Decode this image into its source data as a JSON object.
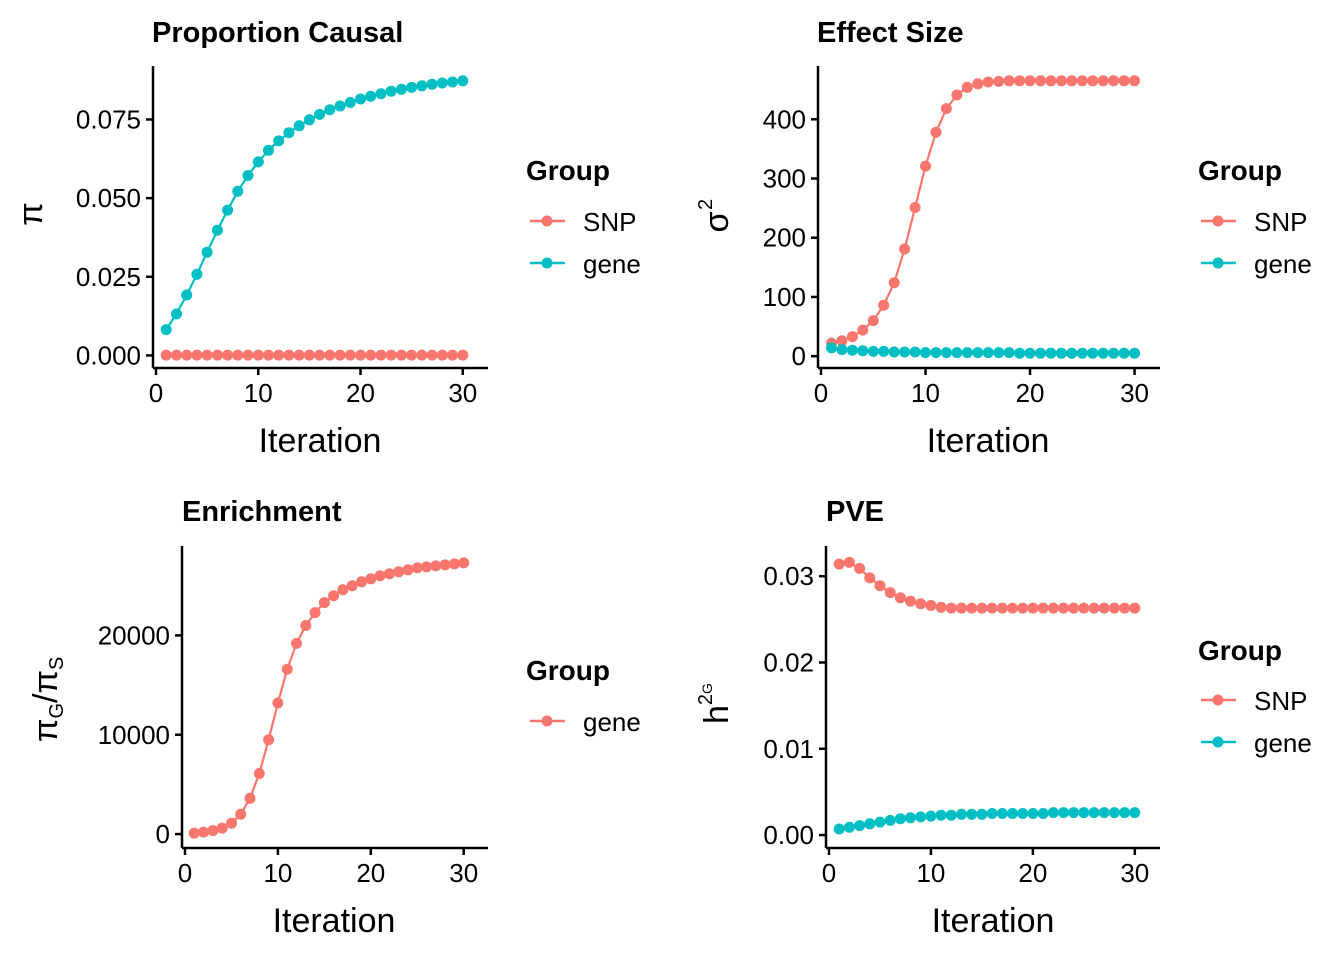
{
  "colors": {
    "SNP": "#F8766D",
    "gene": "#00BFC4"
  },
  "chart_data": [
    {
      "id": "proportion",
      "type": "line",
      "title": "Proportion Causal",
      "xlabel": "Iteration",
      "ylabel": "π",
      "xlim": [
        0,
        31
      ],
      "ylim": [
        -0.004,
        0.092
      ],
      "xticks": [
        0,
        10,
        20,
        30
      ],
      "xtick_labels": [
        "0",
        "10",
        "20",
        "30"
      ],
      "yticks": [
        0,
        0.025,
        0.05,
        0.075
      ],
      "ytick_labels": [
        "0.000",
        "0.025",
        "0.050",
        "0.075"
      ],
      "legend": {
        "title": "Group",
        "items": [
          "SNP",
          "gene"
        ]
      },
      "series": [
        {
          "name": "SNP",
          "x": [
            1,
            2,
            3,
            4,
            5,
            6,
            7,
            8,
            9,
            10,
            11,
            12,
            13,
            14,
            15,
            16,
            17,
            18,
            19,
            20,
            21,
            22,
            23,
            24,
            25,
            26,
            27,
            28,
            29,
            30
          ],
          "y": [
            0.0001,
            0.0001,
            0.0001,
            0.0001,
            0.0001,
            0.0001,
            0.0001,
            0.0001,
            0.0001,
            0.0001,
            0.0001,
            0.0001,
            0.0001,
            0.0001,
            0.0001,
            0.0001,
            0.0001,
            0.0001,
            0.0001,
            0.0001,
            0.0001,
            0.0001,
            0.0001,
            0.0001,
            0.0001,
            0.0001,
            0.0001,
            0.0001,
            0.0001,
            0.0001
          ]
        },
        {
          "name": "gene",
          "x": [
            1,
            2,
            3,
            4,
            5,
            6,
            7,
            8,
            9,
            10,
            11,
            12,
            13,
            14,
            15,
            16,
            17,
            18,
            19,
            20,
            21,
            22,
            23,
            24,
            25,
            26,
            27,
            28,
            29,
            30
          ],
          "y": [
            0.0082,
            0.0132,
            0.0192,
            0.0258,
            0.0328,
            0.0398,
            0.0462,
            0.0522,
            0.0572,
            0.0615,
            0.0652,
            0.0682,
            0.0708,
            0.073,
            0.0749,
            0.0766,
            0.0781,
            0.0793,
            0.0804,
            0.0815,
            0.0824,
            0.0832,
            0.084,
            0.0846,
            0.0852,
            0.0857,
            0.0862,
            0.0866,
            0.0869,
            0.0873
          ]
        }
      ]
    },
    {
      "id": "effect",
      "type": "line",
      "title": "Effect Size",
      "xlabel": "Iteration",
      "ylabel": "σ",
      "ylabel_sup": "2",
      "xlim": [
        0,
        31
      ],
      "ylim": [
        -20,
        490
      ],
      "xticks": [
        0,
        10,
        20,
        30
      ],
      "xtick_labels": [
        "0",
        "10",
        "20",
        "30"
      ],
      "yticks": [
        0,
        100,
        200,
        300,
        400
      ],
      "ytick_labels": [
        "0",
        "100",
        "200",
        "300",
        "400"
      ],
      "legend": {
        "title": "Group",
        "items": [
          "SNP",
          "gene"
        ]
      },
      "series": [
        {
          "name": "SNP",
          "x": [
            1,
            2,
            3,
            4,
            5,
            6,
            7,
            8,
            9,
            10,
            11,
            12,
            13,
            14,
            15,
            16,
            17,
            18,
            19,
            20,
            21,
            22,
            23,
            24,
            25,
            26,
            27,
            28,
            29,
            30
          ],
          "y": [
            22,
            26,
            33,
            44,
            60,
            86,
            124,
            181,
            251,
            321,
            378,
            418,
            441,
            454,
            460,
            463,
            464,
            465,
            465,
            465,
            465,
            465,
            465,
            465,
            465,
            465,
            465,
            465,
            465,
            465
          ]
        },
        {
          "name": "gene",
          "x": [
            1,
            2,
            3,
            4,
            5,
            6,
            7,
            8,
            9,
            10,
            11,
            12,
            13,
            14,
            15,
            16,
            17,
            18,
            19,
            20,
            21,
            22,
            23,
            24,
            25,
            26,
            27,
            28,
            29,
            30
          ],
          "y": [
            14,
            11,
            10,
            9,
            8,
            8,
            7,
            7,
            7,
            6,
            6,
            6,
            6,
            6,
            6,
            6,
            6,
            6,
            5,
            5,
            5,
            5,
            5,
            5,
            5,
            5,
            5,
            5,
            5,
            5
          ]
        }
      ]
    },
    {
      "id": "enrichment",
      "type": "line",
      "title": "Enrichment",
      "xlabel": "Iteration",
      "ylabel": "π",
      "ylabel_parts": [
        "π",
        "G",
        "/",
        "π",
        "S"
      ],
      "xlim": [
        0,
        31
      ],
      "ylim": [
        -1400,
        29000
      ],
      "xticks": [
        0,
        10,
        20,
        30
      ],
      "xtick_labels": [
        "0",
        "10",
        "20",
        "30"
      ],
      "yticks": [
        0,
        10000,
        20000
      ],
      "ytick_labels": [
        "0",
        "10000",
        "20000"
      ],
      "legend": {
        "title": "Group",
        "items": [
          "gene"
        ]
      },
      "series": [
        {
          "name": "gene",
          "x": [
            1,
            2,
            3,
            4,
            5,
            6,
            7,
            8,
            9,
            10,
            11,
            12,
            13,
            14,
            15,
            16,
            17,
            18,
            19,
            20,
            21,
            22,
            23,
            24,
            25,
            26,
            27,
            28,
            29,
            30
          ],
          "y": [
            100,
            200,
            350,
            600,
            1100,
            2000,
            3600,
            6100,
            9500,
            13200,
            16600,
            19200,
            21000,
            22300,
            23300,
            24000,
            24600,
            25000,
            25400,
            25700,
            26000,
            26200,
            26400,
            26600,
            26800,
            26900,
            27000,
            27100,
            27200,
            27300
          ]
        }
      ]
    },
    {
      "id": "pve",
      "type": "line",
      "title": "PVE",
      "xlabel": "Iteration",
      "ylabel": "h",
      "ylabel_parts": [
        "h",
        "2",
        "G"
      ],
      "xlim": [
        0,
        31
      ],
      "ylim": [
        -0.0015,
        0.0335
      ],
      "xticks": [
        0,
        10,
        20,
        30
      ],
      "xtick_labels": [
        "0",
        "10",
        "20",
        "30"
      ],
      "yticks": [
        0,
        0.01,
        0.02,
        0.03
      ],
      "ytick_labels": [
        "0.00",
        "0.01",
        "0.02",
        "0.03"
      ],
      "legend": {
        "title": "Group",
        "items": [
          "SNP",
          "gene"
        ]
      },
      "series": [
        {
          "name": "SNP",
          "x": [
            1,
            2,
            3,
            4,
            5,
            6,
            7,
            8,
            9,
            10,
            11,
            12,
            13,
            14,
            15,
            16,
            17,
            18,
            19,
            20,
            21,
            22,
            23,
            24,
            25,
            26,
            27,
            28,
            29,
            30
          ],
          "y": [
            0.0314,
            0.0316,
            0.0309,
            0.0298,
            0.0289,
            0.0281,
            0.0275,
            0.0271,
            0.0268,
            0.0266,
            0.0264,
            0.0263,
            0.0263,
            0.0263,
            0.0263,
            0.0263,
            0.0263,
            0.0263,
            0.0263,
            0.0263,
            0.0263,
            0.0263,
            0.0263,
            0.0263,
            0.0263,
            0.0263,
            0.0263,
            0.0263,
            0.0263,
            0.0263
          ]
        },
        {
          "name": "gene",
          "x": [
            1,
            2,
            3,
            4,
            5,
            6,
            7,
            8,
            9,
            10,
            11,
            12,
            13,
            14,
            15,
            16,
            17,
            18,
            19,
            20,
            21,
            22,
            23,
            24,
            25,
            26,
            27,
            28,
            29,
            30
          ],
          "y": [
            0.0007,
            0.0009,
            0.0011,
            0.0013,
            0.0015,
            0.0017,
            0.0019,
            0.002,
            0.0021,
            0.0022,
            0.0023,
            0.0023,
            0.0024,
            0.0024,
            0.0024,
            0.0025,
            0.0025,
            0.0025,
            0.0025,
            0.0025,
            0.0025,
            0.0026,
            0.0026,
            0.0026,
            0.0026,
            0.0026,
            0.0026,
            0.0026,
            0.0026,
            0.0026
          ]
        }
      ]
    }
  ]
}
